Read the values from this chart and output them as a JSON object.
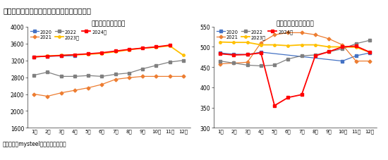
{
  "title": "图表：生猪出栏量及能繁母猪存栏量（万头）",
  "source": "资料来源：mysteel、新湖期货研究所",
  "left_title": "生猪存栏量（万头）",
  "right_title": "能繁母猪存栏（万头）",
  "months": [
    "1月",
    "2月",
    "3月",
    "4月",
    "5月",
    "6月",
    "7月",
    "8月",
    "9月",
    "10月",
    "11月",
    "12月"
  ],
  "left_ylim": [
    1600,
    4000
  ],
  "left_yticks": [
    1600,
    2000,
    2400,
    2800,
    3200,
    3600,
    4000
  ],
  "right_ylim": [
    300,
    550
  ],
  "right_yticks": [
    300,
    350,
    400,
    450,
    500,
    550
  ],
  "left_data": {
    "2020": [
      3280,
      3295,
      3305,
      3310,
      null,
      null,
      null,
      null,
      null,
      null,
      null,
      null
    ],
    "2021": [
      2400,
      2350,
      2430,
      2490,
      2550,
      2630,
      2750,
      2790,
      2820,
      2820,
      2820,
      2820
    ],
    "2022": [
      2850,
      2920,
      2820,
      2820,
      2840,
      2820,
      2870,
      2900,
      3000,
      3080,
      3160,
      3200
    ],
    "2023": [
      3280,
      3305,
      3320,
      3330,
      3345,
      3365,
      3405,
      3450,
      3490,
      3510,
      3545,
      3320
    ],
    "2024": [
      3285,
      3300,
      3315,
      3335,
      3355,
      3380,
      3420,
      3460,
      3490,
      3520,
      3560,
      null
    ]
  },
  "right_data": {
    "2020": [
      485,
      482,
      481,
      487,
      null,
      null,
      null,
      null,
      null,
      465,
      478,
      485
    ],
    "2021": [
      458,
      460,
      462,
      510,
      530,
      535,
      535,
      530,
      520,
      505,
      465,
      465
    ],
    "2022": [
      465,
      460,
      455,
      453,
      455,
      470,
      478,
      480,
      488,
      495,
      508,
      516
    ],
    "2023": [
      512,
      511,
      511,
      505,
      505,
      503,
      505,
      505,
      500,
      500,
      499,
      487
    ],
    "2024": [
      483,
      480,
      481,
      485,
      355,
      375,
      382,
      478,
      488,
      500,
      502,
      487
    ]
  },
  "colors": {
    "2020": "#4472C4",
    "2021": "#ED7D31",
    "2022": "#808080",
    "2023": "#FFC000",
    "2024": "#FF0000"
  },
  "legend_labels": {
    "2020": "2020",
    "2021": "2021",
    "2022": "2022",
    "2023": "2023年",
    "2024": "2024年"
  },
  "header_bg": "#D0E4EE",
  "footer_bar_color": "#1A7A8A",
  "mysteel_color": "#FF0000"
}
